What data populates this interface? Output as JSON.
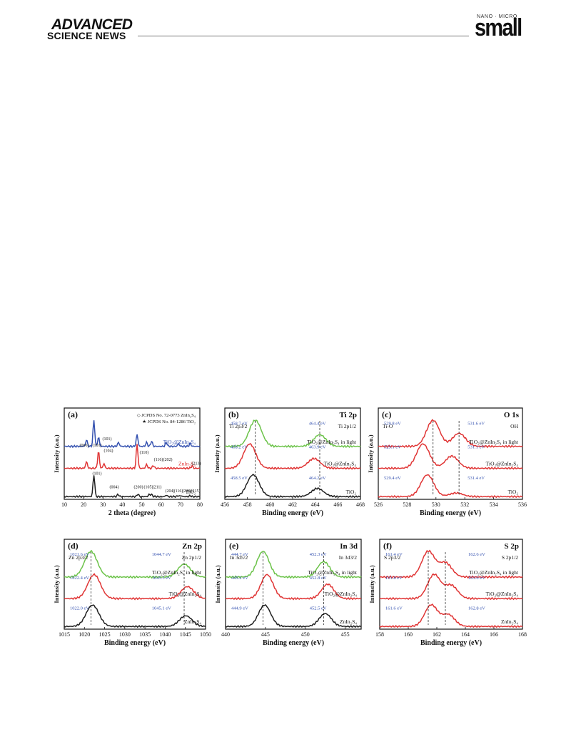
{
  "header": {
    "logo_line1": "ADVANCED",
    "logo_line2": "SCIENCE NEWS",
    "journal_small_caption": "NANO · MICRO",
    "journal_name": "small"
  },
  "figure": {
    "x_axis_label_xrd": "2 theta (degree)",
    "x_axis_label_be": "Binding energy (eV)",
    "y_axis_label": "Intensity (a.u.)"
  },
  "chart_data": [
    {
      "panel": "(a)",
      "type": "line",
      "xlabel": "2 theta (degree)",
      "ylabel": "Intensity (a.u.)",
      "xlim": [
        10,
        80
      ],
      "xticks": [
        "10",
        "20",
        "30",
        "40",
        "50",
        "60",
        "70",
        "80"
      ],
      "legend": [
        "◇ JCPDS No. 72-0773 ZnIn₂S₄",
        "★ JCPDS No. 84-1286 TiO₂"
      ],
      "series": [
        {
          "name": "TiO₂@ZnIn₂S₄",
          "color": "#3552b0",
          "peaks": [
            [
              25.3,
              1.0
            ],
            [
              21.5,
              0.25
            ],
            [
              27.7,
              0.35
            ],
            [
              38,
              0.15
            ],
            [
              47.6,
              0.45
            ],
            [
              52.5,
              0.15
            ],
            [
              55.1,
              0.2
            ],
            [
              62.7,
              0.15
            ],
            [
              69,
              0.1
            ],
            [
              75,
              0.12
            ]
          ]
        },
        {
          "name": "ZnIn₂S₄",
          "color": "#e03535",
          "peaks": [
            [
              21.5,
              0.35
            ],
            [
              27.7,
              0.9
            ],
            [
              30.5,
              0.25
            ],
            [
              47.6,
              1.3
            ],
            [
              52.5,
              0.2
            ],
            [
              56,
              0.15
            ],
            [
              76,
              0.12
            ]
          ]
        },
        {
          "name": "TiO₂",
          "color": "#202020",
          "peaks": [
            [
              25.3,
              3.0
            ],
            [
              37.8,
              0.3
            ],
            [
              48.0,
              0.35
            ],
            [
              53.9,
              0.3
            ],
            [
              55.1,
              0.28
            ],
            [
              62.7,
              0.2
            ],
            [
              68.8,
              0.12
            ],
            [
              70.3,
              0.12
            ],
            [
              75,
              0.12
            ]
          ]
        }
      ],
      "annotations": [
        "(101)",
        "(006)",
        "(101)",
        "(104)",
        "(110)",
        "(116)",
        "(202)",
        "(213)",
        "(101)",
        "(004)",
        "(200)",
        "(105)",
        "(211)",
        "(204)",
        "(116)",
        "(220)",
        "(215)"
      ]
    },
    {
      "panel": "(b)",
      "title": "Ti 2p",
      "type": "line",
      "xlabel": "Binding energy (eV)",
      "ylabel": "Intensity (a.u.)",
      "xlim": [
        456,
        468
      ],
      "xticks": [
        "456",
        "458",
        "460",
        "462",
        "464",
        "466",
        "468"
      ],
      "series": [
        {
          "name": "TiO₂@ZnIn₂S₄ in light",
          "color": "#6cc34a",
          "peaks": [
            [
              458.7,
              1.0
            ],
            [
              464.4,
              0.45
            ]
          ]
        },
        {
          "name": "TiO₂@ZnIn₂S₄",
          "color": "#e03535",
          "peaks": [
            [
              458.2,
              1.0
            ],
            [
              463.9,
              0.4
            ]
          ]
        },
        {
          "name": "TiO₂",
          "color": "#202020",
          "peaks": [
            [
              458.5,
              2.0
            ],
            [
              464.2,
              0.75
            ]
          ]
        }
      ],
      "labels": [
        "Ti 2p3/2",
        "Ti 2p1/2",
        "458.7 eV",
        "464.4 eV",
        "458.2 eV",
        "463.9 eV",
        "458.5 eV",
        "464.2 eV"
      ]
    },
    {
      "panel": "(c)",
      "title": "O 1s",
      "type": "line",
      "xlabel": "Binding energy (eV)",
      "ylabel": "Intensity (a.u.)",
      "xlim": [
        526,
        536
      ],
      "xticks": [
        "526",
        "528",
        "530",
        "532",
        "534",
        "536"
      ],
      "series": [
        {
          "name": "TiO₂@ZnIn₂S₄ in light",
          "color": "#e03535",
          "peaks": [
            [
              529.8,
              1.0
            ],
            [
              531.6,
              0.5
            ]
          ]
        },
        {
          "name": "TiO₂@ZnIn₂S₄",
          "color": "#e03535",
          "peaks": [
            [
              529.1,
              1.0
            ],
            [
              531.1,
              0.5
            ]
          ]
        },
        {
          "name": "TiO₂",
          "color": "#e03535",
          "peaks": [
            [
              529.4,
              3.0
            ],
            [
              531.4,
              0.5
            ]
          ]
        }
      ],
      "labels": [
        "Ti-O",
        "OH",
        "529.8 eV",
        "531.6 eV",
        "529.1 eV",
        "531.1 eV",
        "529.4 eV",
        "531.4 eV"
      ]
    },
    {
      "panel": "(d)",
      "title": "Zn 2p",
      "type": "line",
      "xlabel": "Binding energy (eV)",
      "ylabel": "Intensity (a.u.)",
      "xlim": [
        1015,
        1050
      ],
      "xticks": [
        "1015",
        "1020",
        "1025",
        "1030",
        "1035",
        "1040",
        "1045",
        "1050"
      ],
      "series": [
        {
          "name": "TiO₂@ZnIn₂S₄ in light",
          "color": "#6cc34a",
          "peaks": [
            [
              1021.6,
              1.0
            ],
            [
              1044.7,
              0.5
            ]
          ]
        },
        {
          "name": "TiO₂@ZnIn₂S₄",
          "color": "#e03535",
          "peaks": [
            [
              1022.4,
              1.0
            ],
            [
              1045.5,
              0.5
            ]
          ]
        },
        {
          "name": "ZnIn₂S₄",
          "color": "#202020",
          "peaks": [
            [
              1022.0,
              1.0
            ],
            [
              1045.1,
              0.5
            ]
          ]
        }
      ],
      "labels": [
        "Zn 2p3/2",
        "Zn 2p1/2",
        "1021.6 eV",
        "1044.7 eV",
        "1022.4 eV",
        "1045.5 eV",
        "1022.0 eV",
        "1045.1 eV"
      ]
    },
    {
      "panel": "(e)",
      "title": "In 3d",
      "type": "line",
      "xlabel": "Binding energy (eV)",
      "ylabel": "Intensity (a.u.)",
      "xlim": [
        440,
        457
      ],
      "xticks": [
        "440",
        "445",
        "450",
        "455"
      ],
      "series": [
        {
          "name": "TiO₂@ZnIn₂S₄ in light",
          "color": "#6cc34a",
          "peaks": [
            [
              444.7,
              1.0
            ],
            [
              452.3,
              0.6
            ]
          ]
        },
        {
          "name": "TiO₂@ZnIn₂S₄",
          "color": "#e03535",
          "peaks": [
            [
              445.2,
              1.0
            ],
            [
              452.8,
              0.6
            ]
          ]
        },
        {
          "name": "ZnIn₂S₄",
          "color": "#202020",
          "peaks": [
            [
              444.9,
              1.0
            ],
            [
              452.5,
              0.6
            ]
          ]
        }
      ],
      "labels": [
        "In 3d5/2",
        "In 3d3/2",
        "444.7 eV",
        "452.3 eV",
        "445.2 eV",
        "452.8 eV",
        "444.9 eV",
        "452.5 eV"
      ]
    },
    {
      "panel": "(f)",
      "title": "S 2p",
      "type": "line",
      "xlabel": "Binding energy (eV)",
      "ylabel": "Intensity (a.u.)",
      "xlim": [
        158,
        168
      ],
      "xticks": [
        "158",
        "160",
        "162",
        "164",
        "166",
        "168"
      ],
      "series": [
        {
          "name": "TiO₂@ZnIn₂S₄ in light",
          "color": "#e03535",
          "peaks": [
            [
              161.4,
              1.0
            ],
            [
              162.6,
              0.55
            ]
          ]
        },
        {
          "name": "TiO₂@ZnIn₂S₄",
          "color": "#e03535",
          "peaks": [
            [
              161.8,
              1.0
            ],
            [
              163.0,
              0.55
            ]
          ]
        },
        {
          "name": "ZnIn₂S₄",
          "color": "#e03535",
          "peaks": [
            [
              161.6,
              1.0
            ],
            [
              162.8,
              0.55
            ]
          ]
        }
      ],
      "labels": [
        "S 2p3/2",
        "S 2p1/2",
        "161.4 eV",
        "162.6 eV",
        "161.8 eV",
        "163.0 eV",
        "161.6 eV",
        "162.8 eV"
      ]
    }
  ]
}
